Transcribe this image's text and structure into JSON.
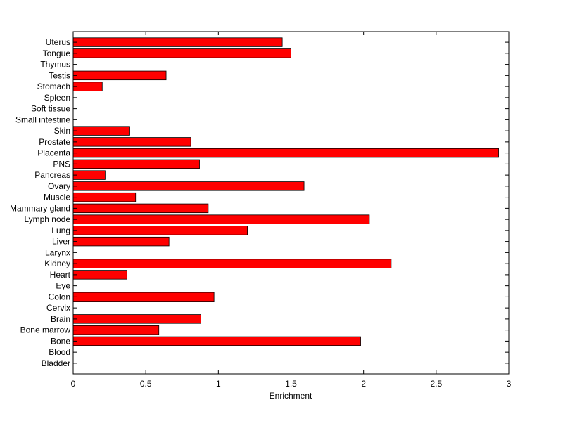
{
  "chart_data": {
    "type": "bar",
    "orientation": "horizontal",
    "title": "",
    "xlabel": "Enrichment",
    "ylabel": "",
    "xlim": [
      0,
      3
    ],
    "xticks": [
      "0",
      "0.5",
      "1",
      "1.5",
      "2",
      "2.5",
      "3"
    ],
    "grid": false,
    "legend": "none",
    "bar_color": "#ff0000",
    "categories": [
      "Bladder",
      "Blood",
      "Bone",
      "Bone marrow",
      "Brain",
      "Cervix",
      "Colon",
      "Eye",
      "Heart",
      "Kidney",
      "Larynx",
      "Liver",
      "Lung",
      "Lymph node",
      "Mammary gland",
      "Muscle",
      "Ovary",
      "Pancreas",
      "PNS",
      "Placenta",
      "Prostate",
      "Skin",
      "Small intestine",
      "Soft tissue",
      "Spleen",
      "Stomach",
      "Testis",
      "Thymus",
      "Tongue",
      "Uterus"
    ],
    "values": [
      0,
      0,
      1.98,
      0.59,
      0.88,
      0,
      0.97,
      0,
      0.37,
      2.19,
      0,
      0.66,
      1.2,
      2.04,
      0.93,
      0.43,
      1.59,
      0.22,
      0.87,
      2.93,
      0.81,
      0.39,
      0,
      0,
      0,
      0.2,
      0.64,
      0,
      1.5,
      1.44
    ]
  }
}
